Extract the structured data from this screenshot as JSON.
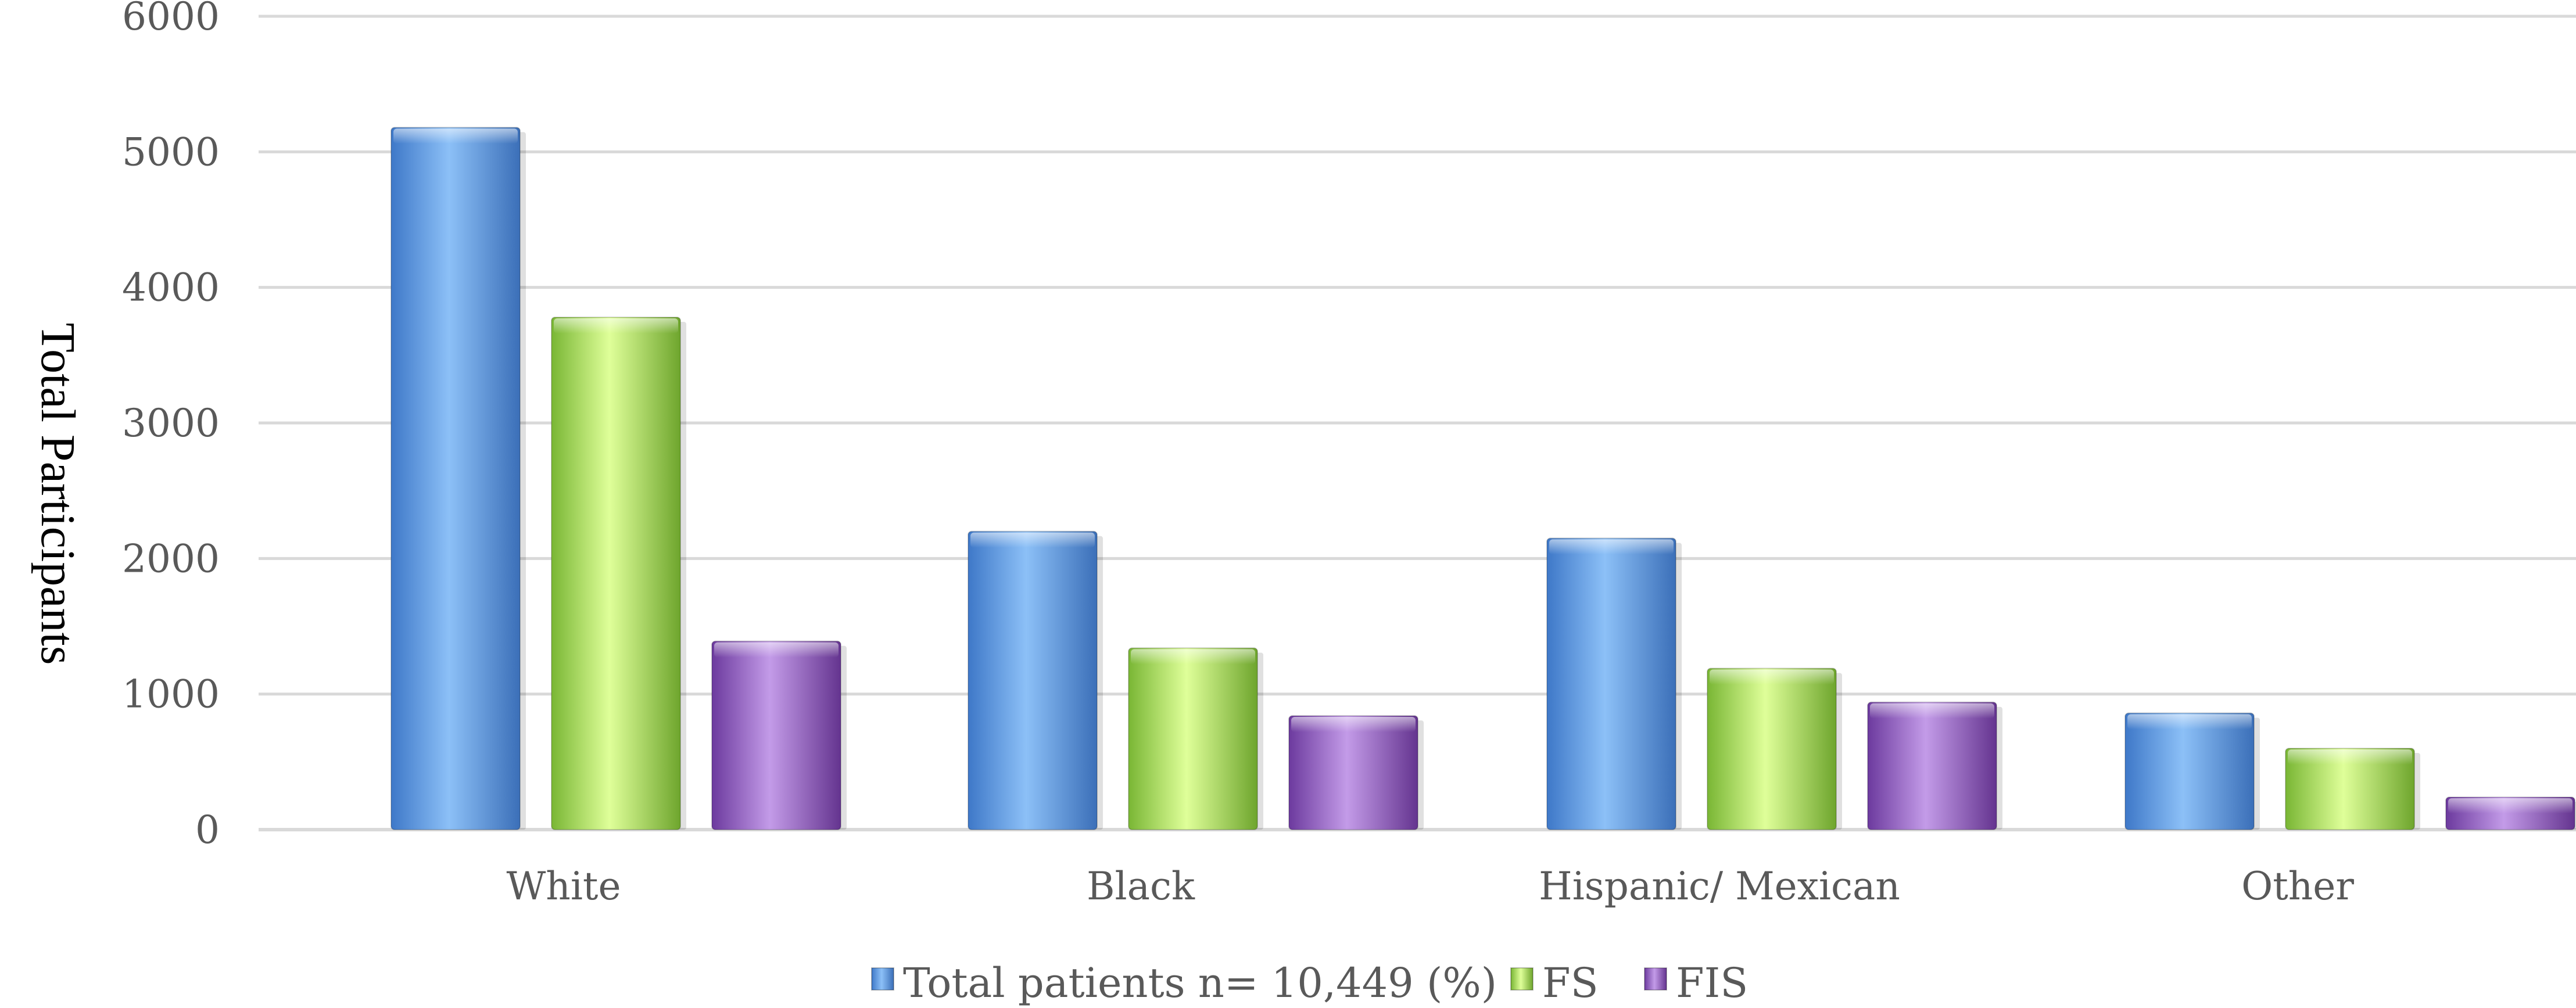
{
  "chart_data": {
    "type": "bar",
    "title": "",
    "xlabel": "",
    "ylabel": "Total Participants",
    "ylim": [
      0,
      6000
    ],
    "yticks": [
      0,
      1000,
      2000,
      3000,
      4000,
      5000,
      6000
    ],
    "grid": true,
    "legend_position": "bottom",
    "categories": [
      "White",
      "Black",
      "Hispanic/ Mexican",
      "Other"
    ],
    "series": [
      {
        "name": "Total patients n= 10,449 (%)",
        "color": "#5b9bd5",
        "values": [
          5180,
          2200,
          2150,
          860
        ]
      },
      {
        "name": "FS",
        "color": "#9bd34f",
        "values": [
          3780,
          1340,
          1190,
          600
        ]
      },
      {
        "name": "FIS",
        "color": "#8e5cc0",
        "values": [
          1390,
          840,
          940,
          240
        ]
      }
    ]
  }
}
